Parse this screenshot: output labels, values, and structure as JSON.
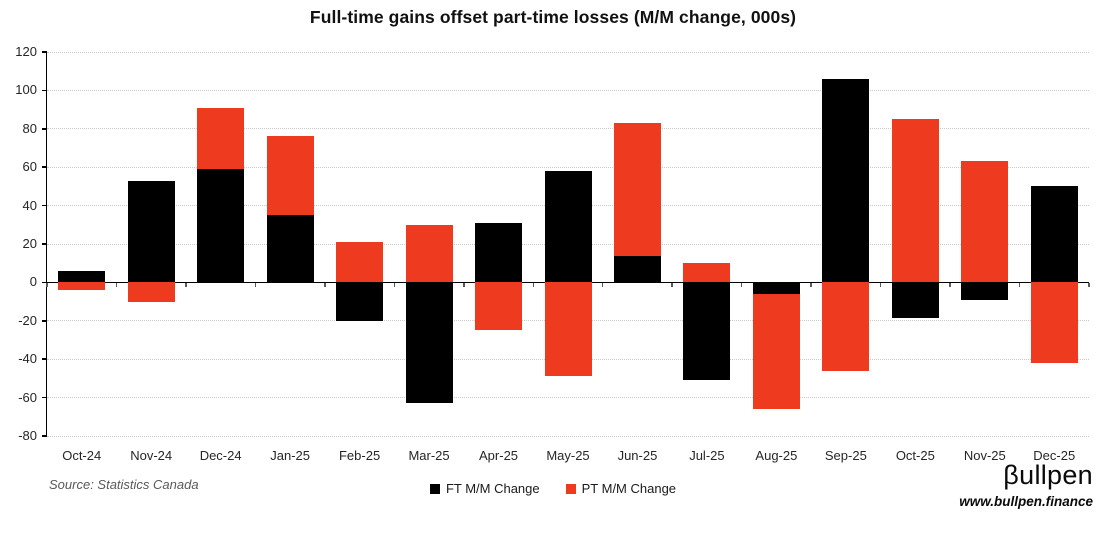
{
  "title": "Full-time gains offset part-time losses (M/M change, 000s)",
  "source_note": "Source: Statistics Canada",
  "logo": {
    "brand": "βullpen",
    "url": "www.bullpen.finance"
  },
  "legend": {
    "ft_label": "FT M/M Change",
    "pt_label": "PT M/M Change"
  },
  "colors": {
    "ft": "#000000",
    "pt": "#ee3b1f",
    "grid": "#c9c9c9",
    "axis": "#000000",
    "tick_text": "#262626"
  },
  "chart_data": {
    "type": "bar",
    "stacked": true,
    "title": "Full-time gains offset part-time losses (M/M change, 000s)",
    "categories": [
      "Oct-24",
      "Nov-24",
      "Dec-24",
      "Jan-25",
      "Feb-25",
      "Mar-25",
      "Apr-25",
      "May-25",
      "Jun-25",
      "Jul-25",
      "Aug-25",
      "Sep-25",
      "Oct-25",
      "Nov-25",
      "Dec-25"
    ],
    "series": [
      {
        "key": "ft",
        "name": "FT M/M Change",
        "color": "#000000",
        "values": [
          6,
          53,
          59,
          35,
          -20,
          -63,
          31,
          58,
          13.5,
          -51,
          -6,
          106,
          -18.5,
          -9,
          50
        ]
      },
      {
        "key": "pt",
        "name": "PT M/M Change",
        "color": "#ee3b1f",
        "values": [
          -4,
          -10,
          32,
          41,
          21,
          30,
          -25,
          -49,
          69.5,
          10,
          -60,
          -46,
          85,
          63,
          -42
        ]
      }
    ],
    "xlabel": "",
    "ylabel": "",
    "ylim": [
      -80,
      120
    ],
    "ytick_step": 20,
    "yticks": [
      -80,
      -60,
      -40,
      -20,
      0,
      20,
      40,
      60,
      80,
      100,
      120
    ],
    "grid": "horizontal-dotted",
    "legend_position": "bottom-center"
  }
}
